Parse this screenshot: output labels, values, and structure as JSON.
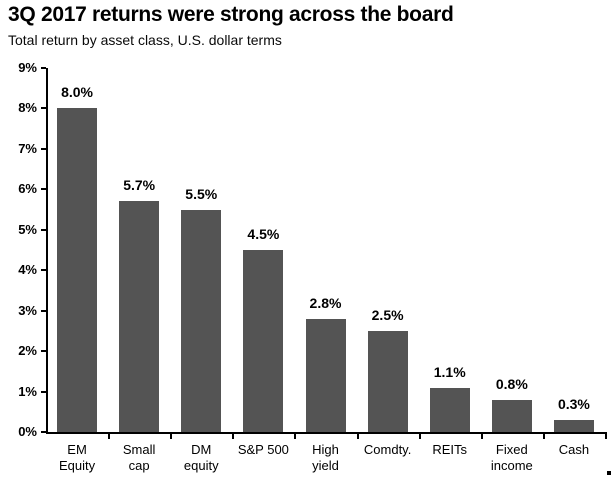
{
  "chart_data": {
    "type": "bar",
    "title": "3Q 2017 returns were strong across the board",
    "subtitle": "Total return by asset class, U.S. dollar terms",
    "categories": [
      "EM Equity",
      "Small cap",
      "DM equity",
      "S&P 500",
      "High yield",
      "Comdty.",
      "REITs",
      "Fixed income",
      "Cash"
    ],
    "category_labels": [
      "EM\nEquity",
      "Small\ncap",
      "DM\nequity",
      "S&P 500",
      "High\nyield",
      "Comdty.",
      "REITs",
      "Fixed\nincome",
      "Cash"
    ],
    "values": [
      8.0,
      5.7,
      5.5,
      4.5,
      2.8,
      2.5,
      1.1,
      0.8,
      0.3
    ],
    "value_labels": [
      "8.0%",
      "5.7%",
      "5.5%",
      "4.5%",
      "2.8%",
      "2.5%",
      "1.1%",
      "0.8%",
      "0.3%"
    ],
    "xlabel": "",
    "ylabel": "",
    "ylim": [
      0,
      9
    ],
    "y_ticks": [
      "9%",
      "8%",
      "7%",
      "6%",
      "5%",
      "4%",
      "3%",
      "2%",
      "1%",
      "0%"
    ],
    "grid": false,
    "legend": false,
    "bar_color": "#545454",
    "axis_color": "#000000",
    "text_color": "#000000"
  }
}
